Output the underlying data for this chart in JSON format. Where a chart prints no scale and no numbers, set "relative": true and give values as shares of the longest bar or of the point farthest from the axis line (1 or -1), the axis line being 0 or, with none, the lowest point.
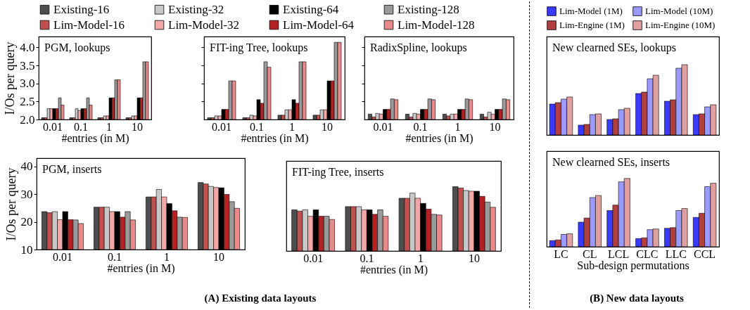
{
  "chart_data": [
    {
      "type": "bar",
      "title": "PGM, lookups",
      "xlabel": "#entries (in M)",
      "ylabel": "I/Os per query",
      "categories": [
        "0.01",
        "0.1",
        "1",
        "10"
      ],
      "ylim": [
        2.0,
        4.3
      ],
      "yticks": [
        {
          "value": 2.0,
          "label": "2.0"
        },
        2.5,
        {
          "value": 3.0,
          "label": "3.0"
        },
        3.5,
        {
          "value": 4.0,
          "label": "4.0"
        }
      ],
      "legend": "top",
      "series": [
        {
          "name": "Existing-16",
          "color": "#4d4d4d",
          "values": [
            2.05,
            2.05,
            2.05,
            2.05
          ]
        },
        {
          "name": "Lim-Model-16",
          "color": "#c0504d",
          "values": [
            2.05,
            2.05,
            2.05,
            2.05
          ]
        },
        {
          "name": "Existing-32",
          "color": "#c8c8c8",
          "values": [
            2.3,
            2.3,
            2.1,
            2.1
          ]
        },
        {
          "name": "Lim-Model-32",
          "color": "#f2a8a8",
          "values": [
            2.3,
            2.25,
            2.1,
            2.1
          ]
        },
        {
          "name": "Existing-64",
          "color": "#000000",
          "values": [
            2.3,
            2.3,
            2.6,
            2.6
          ]
        },
        {
          "name": "Lim-Model-64",
          "color": "#b22222",
          "values": [
            2.3,
            2.3,
            2.6,
            2.6
          ]
        },
        {
          "name": "Existing-128",
          "color": "#9a9a9a",
          "values": [
            2.6,
            2.6,
            3.1,
            3.6
          ]
        },
        {
          "name": "Lim-Model-128",
          "color": "#e88a8a",
          "values": [
            2.4,
            2.4,
            3.1,
            3.6
          ]
        }
      ]
    },
    {
      "type": "bar",
      "title": "FIT-ing Tree, lookups",
      "xlabel": "#entries (in M)",
      "categories": [
        "0.01",
        "0.1",
        "1",
        "10"
      ],
      "ylim": [
        2.0,
        4.3
      ],
      "yticks": [
        {
          "value": 2.5,
          "label": null
        },
        {
          "value": 3.0,
          "label": null
        },
        {
          "value": 3.5,
          "label": null
        },
        {
          "value": 4.0,
          "label": null
        }
      ],
      "tick_labels": "x",
      "series": [
        {
          "color": "#4d4d4d",
          "values": [
            2.05,
            2.05,
            2.12,
            2.12
          ]
        },
        {
          "color": "#c0504d",
          "values": [
            2.05,
            2.05,
            2.12,
            2.12
          ]
        },
        {
          "color": "#c8c8c8",
          "values": [
            2.1,
            2.12,
            2.27,
            2.27
          ]
        },
        {
          "color": "#f2a8a8",
          "values": [
            2.1,
            2.1,
            2.27,
            2.27
          ]
        },
        {
          "color": "#000000",
          "values": [
            2.28,
            2.55,
            2.55,
            3.07
          ]
        },
        {
          "color": "#b22222",
          "values": [
            2.28,
            2.45,
            2.45,
            3.07
          ]
        },
        {
          "color": "#9a9a9a",
          "values": [
            3.07,
            3.6,
            3.6,
            4.14
          ]
        },
        {
          "color": "#e88a8a",
          "values": [
            3.07,
            3.45,
            3.6,
            4.14
          ]
        }
      ]
    },
    {
      "type": "bar",
      "title": "RadixSpline, lookups",
      "xlabel": "#entries (in M)",
      "categories": [
        "0.01",
        "0.1",
        "1",
        "10"
      ],
      "ylim": [
        2.0,
        4.3
      ],
      "yticks": [
        {
          "value": 2.5,
          "label": null
        },
        {
          "value": 3.0,
          "label": null
        },
        {
          "value": 3.5,
          "label": null
        },
        {
          "value": 4.0,
          "label": null
        }
      ],
      "tick_labels": "x",
      "series": [
        {
          "color": "#4d4d4d",
          "values": [
            2.15,
            2.15,
            2.15,
            2.15
          ]
        },
        {
          "color": "#c0504d",
          "values": [
            2.07,
            2.07,
            2.1,
            2.07
          ]
        },
        {
          "color": "#c8c8c8",
          "values": [
            2.17,
            2.17,
            2.15,
            2.2
          ]
        },
        {
          "color": "#f2a8a8",
          "values": [
            2.15,
            2.15,
            2.15,
            2.15
          ]
        },
        {
          "color": "#000000",
          "values": [
            2.28,
            2.28,
            2.28,
            2.28
          ]
        },
        {
          "color": "#b22222",
          "values": [
            2.28,
            2.28,
            2.28,
            2.28
          ]
        },
        {
          "color": "#9a9a9a",
          "values": [
            2.57,
            2.57,
            2.57,
            2.57
          ]
        },
        {
          "color": "#e88a8a",
          "values": [
            2.55,
            2.55,
            2.55,
            2.55
          ]
        }
      ]
    },
    {
      "type": "bar",
      "title": "PGM, inserts",
      "xlabel": "#entries (in M)",
      "ylabel": "I/Os per query",
      "categories": [
        "0.01",
        "0.1",
        "1",
        "10"
      ],
      "ylim": [
        10,
        43
      ],
      "yticks": [
        10,
        20,
        30,
        40
      ],
      "annotations": [
        "(A) Existing data layouts"
      ],
      "series": [
        {
          "color": "#4d4d4d",
          "values": [
            23.7,
            25.3,
            29.0,
            34.2
          ]
        },
        {
          "color": "#c0504d",
          "values": [
            23.3,
            25.3,
            29.0,
            33.7
          ]
        },
        {
          "color": "#c8c8c8",
          "values": [
            23.7,
            25.3,
            31.7,
            32.8
          ]
        },
        {
          "color": "#f2a8a8",
          "values": [
            20.8,
            23.7,
            29.0,
            32.4
          ]
        },
        {
          "color": "#000000",
          "values": [
            23.7,
            23.7,
            26.6,
            32.3
          ]
        },
        {
          "color": "#b22222",
          "values": [
            20.8,
            21.7,
            24.0,
            29.9
          ]
        },
        {
          "color": "#9a9a9a",
          "values": [
            20.7,
            23.7,
            21.7,
            27.3
          ]
        },
        {
          "color": "#e88a8a",
          "values": [
            19.4,
            20.7,
            21.6,
            24.9
          ]
        }
      ]
    },
    {
      "type": "bar",
      "title": "FIT-ing Tree, inserts",
      "relative": true,
      "xlabel": "#entries (in M)",
      "categories": [
        "0.01",
        "0.1",
        "1",
        "10"
      ],
      "series": [
        {
          "color": "#4d4d4d",
          "values": [
            0.64,
            0.69,
            0.82,
            1
          ]
        },
        {
          "color": "#c0504d",
          "values": [
            0.62,
            0.69,
            0.82,
            0.98
          ]
        },
        {
          "color": "#c8c8c8",
          "values": [
            0.64,
            0.69,
            0.9,
            0.94
          ]
        },
        {
          "color": "#f2a8a8",
          "values": [
            0.54,
            0.64,
            0.82,
            0.93
          ]
        },
        {
          "color": "#000000",
          "values": [
            0.64,
            0.64,
            0.74,
            0.93
          ]
        },
        {
          "color": "#b22222",
          "values": [
            0.54,
            0.57,
            0.65,
            0.85
          ]
        },
        {
          "color": "#9a9a9a",
          "values": [
            0.54,
            0.64,
            0.57,
            0.76
          ]
        },
        {
          "color": "#e88a8a",
          "values": [
            0.49,
            0.54,
            0.56,
            0.68
          ]
        }
      ]
    },
    {
      "type": "bar",
      "title": "New clearned SEs, lookups",
      "relative": true,
      "categories": [
        null,
        null,
        null,
        null,
        null,
        null
      ],
      "legend": "top",
      "series": [
        {
          "name": "Lim-Model (1M)",
          "color": "#3a3aff",
          "values": [
            0.44,
            0.14,
            0.22,
            0.59,
            0.48,
            0.29
          ]
        },
        {
          "name": "Lim-Engine (1M)",
          "color": "#b04040",
          "values": [
            0.46,
            0.15,
            0.23,
            0.61,
            0.5,
            0.3
          ]
        },
        {
          "name": "Lim-Model (10M)",
          "color": "#9a9aff",
          "values": [
            0.51,
            0.29,
            0.36,
            0.8,
            0.95,
            0.4
          ]
        },
        {
          "name": "Lim-Engine (10M)",
          "color": "#e0a0a0",
          "values": [
            0.54,
            0.3,
            0.38,
            0.85,
            1,
            0.43
          ]
        }
      ]
    },
    {
      "type": "bar",
      "title": "New clearned SEs, inserts",
      "relative": true,
      "xlabel": "Sub-design permutations",
      "categories": [
        "LC",
        "CL",
        "LCL",
        "CLC",
        "LLC",
        "CCL"
      ],
      "annotations": [
        "(B) New data layouts"
      ],
      "series": [
        {
          "color": "#3a3aff",
          "values": [
            0.09,
            0.36,
            0.53,
            0.12,
            0.27,
            0.43
          ]
        },
        {
          "color": "#b04040",
          "values": [
            0.1,
            0.42,
            0.61,
            0.13,
            0.28,
            0.49
          ]
        },
        {
          "color": "#9a9aff",
          "values": [
            0.18,
            0.72,
            0.95,
            0.25,
            0.53,
            0.88
          ]
        },
        {
          "color": "#e0a0a0",
          "values": [
            0.19,
            0.75,
            1,
            0.26,
            0.56,
            0.93
          ]
        }
      ]
    }
  ]
}
